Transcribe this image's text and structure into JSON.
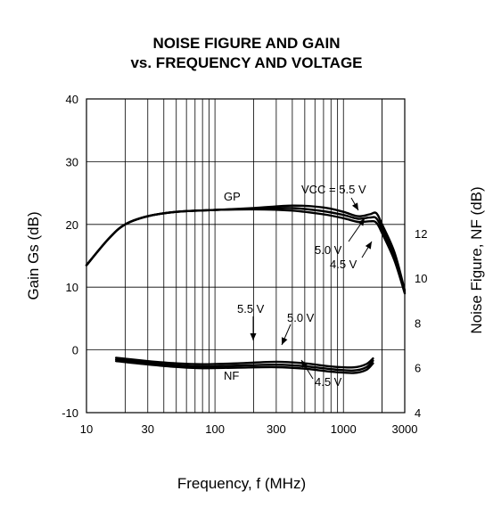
{
  "chart_data": {
    "type": "line",
    "title": "NOISE FIGURE AND GAIN",
    "subtitle": "vs. FREQUENCY AND VOLTAGE",
    "xlabel": "Frequency, f (MHz)",
    "ylabel_left": "Gain Gs (dB)",
    "ylabel_right": "Noise Figure, NF (dB)",
    "x_scale": "log",
    "xlim": [
      10,
      3000
    ],
    "ylim_left": [
      -10,
      40
    ],
    "ylim_right": [
      4,
      18
    ],
    "grid": true,
    "x_ticks": [
      10,
      30,
      100,
      300,
      1000,
      3000
    ],
    "x_tick_labels": [
      "10",
      "30",
      "100",
      "300",
      "1000",
      "3000"
    ],
    "y_left_ticks": [
      -10,
      0,
      10,
      20,
      30,
      40
    ],
    "y_left_tick_labels": [
      "-10",
      "0",
      "10",
      "20",
      "30",
      "40"
    ],
    "y_right_ticks": [
      4,
      6,
      8,
      10,
      12
    ],
    "y_right_tick_labels": [
      "4",
      "6",
      "8",
      "10",
      "12"
    ],
    "annotations": {
      "gp": "GP",
      "nf": "NF",
      "vcc_55": "VCC = 5.5 V",
      "gain_50": "5.0 V",
      "gain_45": "4.5 V",
      "nf_55": "5.5 V",
      "nf_50": "5.0 V",
      "nf_45": "4.5 V"
    },
    "series": [
      {
        "group": "gain",
        "vcc": "5.5 V",
        "axis": "left",
        "x": [
          10,
          15,
          20,
          30,
          50,
          100,
          200,
          400,
          700,
          1000,
          1300,
          1600,
          1800,
          2000,
          2500,
          3000
        ],
        "y": [
          13.5,
          17.8,
          20.0,
          21.3,
          22.0,
          22.3,
          22.6,
          23.0,
          22.7,
          22.0,
          21.3,
          21.6,
          21.8,
          20.0,
          15.5,
          9.5
        ]
      },
      {
        "group": "gain",
        "vcc": "5.0 V",
        "axis": "left",
        "x": [
          10,
          15,
          20,
          30,
          50,
          100,
          200,
          400,
          700,
          1000,
          1300,
          1600,
          1800,
          2000,
          2500,
          3000
        ],
        "y": [
          13.5,
          17.8,
          20.0,
          21.3,
          22.0,
          22.3,
          22.5,
          22.6,
          22.1,
          21.5,
          20.9,
          21.1,
          21.0,
          19.3,
          14.8,
          9.2
        ]
      },
      {
        "group": "gain",
        "vcc": "4.5 V",
        "axis": "left",
        "x": [
          10,
          15,
          20,
          30,
          50,
          100,
          200,
          400,
          700,
          1000,
          1300,
          1600,
          1800,
          2000,
          2500,
          3000
        ],
        "y": [
          13.5,
          17.8,
          20.0,
          21.3,
          22.0,
          22.3,
          22.4,
          22.2,
          21.6,
          21.0,
          20.4,
          20.5,
          20.3,
          18.6,
          14.2,
          9.0
        ]
      },
      {
        "group": "nf",
        "vcc": "5.5 V",
        "axis": "right",
        "x": [
          17,
          30,
          50,
          80,
          150,
          300,
          500,
          800,
          1200,
          1500,
          1700
        ],
        "y": [
          6.45,
          6.3,
          6.2,
          6.16,
          6.2,
          6.27,
          6.2,
          6.06,
          6.02,
          6.16,
          6.42
        ]
      },
      {
        "group": "nf",
        "vcc": "5.0 V",
        "axis": "right",
        "x": [
          17,
          30,
          50,
          80,
          150,
          300,
          500,
          800,
          1200,
          1500,
          1700
        ],
        "y": [
          6.37,
          6.22,
          6.11,
          6.06,
          6.1,
          6.14,
          6.07,
          5.94,
          5.88,
          6.02,
          6.32
        ]
      },
      {
        "group": "nf",
        "vcc": "4.5 V",
        "axis": "right",
        "x": [
          17,
          30,
          50,
          80,
          150,
          300,
          500,
          800,
          1200,
          1500,
          1700
        ],
        "y": [
          6.3,
          6.15,
          6.04,
          5.98,
          6.01,
          6.03,
          5.96,
          5.83,
          5.77,
          5.9,
          6.2
        ]
      }
    ]
  }
}
